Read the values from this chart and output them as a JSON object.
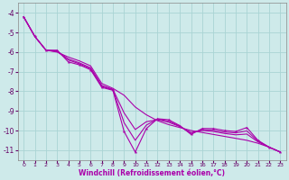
{
  "xlabel": "Windchill (Refroidissement éolien,°C)",
  "ylabel": "",
  "background_color": "#ceeaea",
  "grid_color": "#aad4d4",
  "line_color": "#aa00aa",
  "xlim": [
    -0.5,
    23.5
  ],
  "ylim": [
    -11.5,
    -3.5
  ],
  "yticks": [
    -4,
    -5,
    -6,
    -7,
    -8,
    -9,
    -10,
    -11
  ],
  "xticks": [
    0,
    1,
    2,
    3,
    4,
    5,
    6,
    7,
    8,
    9,
    10,
    11,
    12,
    13,
    14,
    15,
    16,
    17,
    18,
    19,
    20,
    21,
    22,
    23
  ],
  "series1": [
    [
      0,
      -4.2
    ],
    [
      1,
      -5.2
    ],
    [
      2,
      -5.9
    ],
    [
      3,
      -5.9
    ],
    [
      4,
      -6.5
    ],
    [
      5,
      -6.65
    ],
    [
      6,
      -6.9
    ],
    [
      7,
      -7.8
    ],
    [
      8,
      -7.95
    ],
    [
      9,
      -10.05
    ],
    [
      10,
      -11.1
    ],
    [
      11,
      -9.9
    ],
    [
      12,
      -9.4
    ],
    [
      13,
      -9.45
    ],
    [
      14,
      -9.75
    ],
    [
      15,
      -10.2
    ],
    [
      16,
      -9.9
    ],
    [
      17,
      -9.9
    ],
    [
      18,
      -10.0
    ],
    [
      19,
      -10.05
    ],
    [
      20,
      -9.85
    ],
    [
      21,
      -10.5
    ],
    [
      22,
      -10.85
    ],
    [
      23,
      -11.1
    ]
  ],
  "series2": [
    [
      0,
      -4.2
    ],
    [
      1,
      -5.2
    ],
    [
      2,
      -5.9
    ],
    [
      3,
      -6.0
    ],
    [
      4,
      -6.25
    ],
    [
      5,
      -6.45
    ],
    [
      6,
      -6.7
    ],
    [
      7,
      -7.6
    ],
    [
      8,
      -7.85
    ],
    [
      9,
      -8.2
    ],
    [
      10,
      -8.8
    ],
    [
      11,
      -9.2
    ],
    [
      12,
      -9.5
    ],
    [
      13,
      -9.7
    ],
    [
      14,
      -9.85
    ],
    [
      15,
      -10.0
    ],
    [
      16,
      -10.1
    ],
    [
      17,
      -10.2
    ],
    [
      18,
      -10.3
    ],
    [
      19,
      -10.4
    ],
    [
      20,
      -10.5
    ],
    [
      21,
      -10.65
    ],
    [
      22,
      -10.85
    ],
    [
      23,
      -11.1
    ]
  ],
  "series3": [
    [
      0,
      -4.2
    ],
    [
      1,
      -5.2
    ],
    [
      2,
      -5.9
    ],
    [
      3,
      -5.95
    ],
    [
      4,
      -6.35
    ],
    [
      5,
      -6.55
    ],
    [
      6,
      -6.8
    ],
    [
      7,
      -7.7
    ],
    [
      8,
      -7.9
    ],
    [
      9,
      -9.1
    ],
    [
      10,
      -9.95
    ],
    [
      11,
      -9.55
    ],
    [
      12,
      -9.45
    ],
    [
      13,
      -9.58
    ],
    [
      14,
      -9.8
    ],
    [
      15,
      -10.1
    ],
    [
      16,
      -10.0
    ],
    [
      17,
      -10.05
    ],
    [
      18,
      -10.15
    ],
    [
      19,
      -10.22
    ],
    [
      20,
      -10.18
    ],
    [
      21,
      -10.58
    ],
    [
      22,
      -10.85
    ],
    [
      23,
      -11.1
    ]
  ],
  "series4": [
    [
      0,
      -4.2
    ],
    [
      1,
      -5.2
    ],
    [
      2,
      -5.9
    ],
    [
      3,
      -5.97
    ],
    [
      4,
      -6.4
    ],
    [
      5,
      -6.6
    ],
    [
      6,
      -6.85
    ],
    [
      7,
      -7.75
    ],
    [
      8,
      -7.92
    ],
    [
      9,
      -9.6
    ],
    [
      10,
      -10.5
    ],
    [
      11,
      -9.72
    ],
    [
      12,
      -9.42
    ],
    [
      13,
      -9.52
    ],
    [
      14,
      -9.78
    ],
    [
      15,
      -10.15
    ],
    [
      16,
      -9.95
    ],
    [
      17,
      -9.98
    ],
    [
      18,
      -10.08
    ],
    [
      19,
      -10.12
    ],
    [
      20,
      -10.02
    ],
    [
      21,
      -10.54
    ],
    [
      22,
      -10.85
    ],
    [
      23,
      -11.1
    ]
  ]
}
